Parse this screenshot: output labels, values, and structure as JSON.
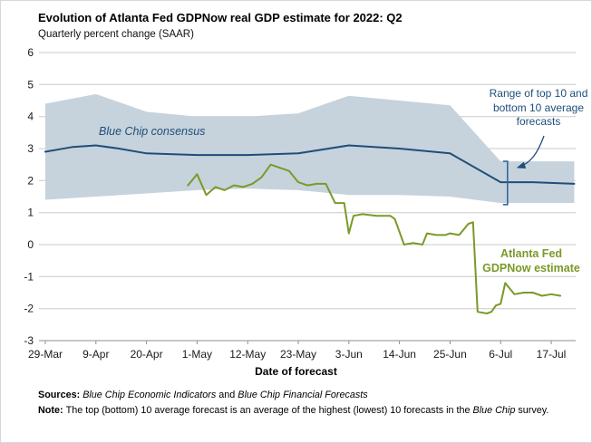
{
  "header": {
    "title": "Evolution of Atlanta Fed GDPNow real GDP estimate for 2022: Q2",
    "subtitle": "Quarterly percent change (SAAR)"
  },
  "annotations": {
    "blue_chip_label": "Blue Chip consensus",
    "range_label": "Range of top 10 and bottom 10 average forecasts",
    "gdpnow_label": "Atlanta Fed GDPNow estimate"
  },
  "footer": {
    "sources_segments": [
      {
        "text": "Sources: ",
        "style": "bold"
      },
      {
        "text": "Blue Chip Economic Indicators",
        "style": "italic"
      },
      {
        "text": " and ",
        "style": "normal"
      },
      {
        "text": "Blue Chip Financial Forecasts",
        "style": "italic"
      }
    ],
    "note_segments": [
      {
        "text": "Note: ",
        "style": "bold"
      },
      {
        "text": "The top (bottom) 10 average forecast is an average of the highest (lowest) 10 forecasts in the ",
        "style": "normal"
      },
      {
        "text": "Blue Chip",
        "style": "italic"
      },
      {
        "text": " survey.",
        "style": "normal"
      }
    ]
  },
  "chart_data": {
    "type": "line",
    "title": "Evolution of Atlanta Fed GDPNow real GDP estimate for 2022: Q2",
    "ylabel": "Quarterly percent change (SAAR)",
    "xlabel": "Date of forecast",
    "ylim": [
      -3,
      6
    ],
    "y_ticks": [
      6,
      5,
      4,
      3,
      2,
      1,
      0,
      -1,
      -2,
      -3
    ],
    "grid": "horizontal only",
    "x_axis_unit": "days since 29-Mar-2022",
    "x_ticks": [
      {
        "day": 0,
        "label": "29-Mar"
      },
      {
        "day": 11,
        "label": "9-Apr"
      },
      {
        "day": 22,
        "label": "20-Apr"
      },
      {
        "day": 33,
        "label": "1-May"
      },
      {
        "day": 44,
        "label": "12-May"
      },
      {
        "day": 55,
        "label": "23-May"
      },
      {
        "day": 66,
        "label": "3-Jun"
      },
      {
        "day": 77,
        "label": "14-Jun"
      },
      {
        "day": 88,
        "label": "25-Jun"
      },
      {
        "day": 99,
        "label": "6-Jul"
      },
      {
        "day": 110,
        "label": "17-Jul"
      }
    ],
    "band": {
      "name": "Range of top 10 and bottom 10 average forecasts",
      "color": "#c6d3dc",
      "top": [
        [
          0,
          4.4
        ],
        [
          11,
          4.7
        ],
        [
          22,
          4.15
        ],
        [
          33,
          4.0
        ],
        [
          44,
          4.0
        ],
        [
          55,
          4.1
        ],
        [
          66,
          4.65
        ],
        [
          77,
          4.5
        ],
        [
          88,
          4.35
        ],
        [
          99,
          2.6
        ],
        [
          115,
          2.6
        ]
      ],
      "bottom": [
        [
          0,
          1.4
        ],
        [
          11,
          1.5
        ],
        [
          22,
          1.6
        ],
        [
          33,
          1.7
        ],
        [
          44,
          1.75
        ],
        [
          55,
          1.7
        ],
        [
          66,
          1.55
        ],
        [
          77,
          1.55
        ],
        [
          88,
          1.5
        ],
        [
          99,
          1.3
        ],
        [
          115,
          1.3
        ]
      ]
    },
    "series": [
      {
        "name": "Blue Chip consensus",
        "color": "#1f4e79",
        "points": [
          [
            0,
            2.9
          ],
          [
            6,
            3.05
          ],
          [
            11,
            3.1
          ],
          [
            16,
            3.0
          ],
          [
            22,
            2.85
          ],
          [
            33,
            2.8
          ],
          [
            44,
            2.8
          ],
          [
            55,
            2.85
          ],
          [
            66,
            3.1
          ],
          [
            77,
            3.0
          ],
          [
            88,
            2.85
          ],
          [
            99,
            1.95
          ],
          [
            106,
            1.95
          ],
          [
            115,
            1.9
          ]
        ]
      },
      {
        "name": "Atlanta Fed GDPNow estimate",
        "color": "#7a9a28",
        "points": [
          [
            31,
            1.85
          ],
          [
            33,
            2.2
          ],
          [
            35,
            1.55
          ],
          [
            37,
            1.8
          ],
          [
            39,
            1.7
          ],
          [
            41,
            1.85
          ],
          [
            43,
            1.8
          ],
          [
            45,
            1.9
          ],
          [
            47,
            2.1
          ],
          [
            49,
            2.5
          ],
          [
            51,
            2.4
          ],
          [
            53,
            2.3
          ],
          [
            55,
            1.95
          ],
          [
            57,
            1.85
          ],
          [
            59,
            1.9
          ],
          [
            61,
            1.9
          ],
          [
            63,
            1.3
          ],
          [
            65,
            1.3
          ],
          [
            66,
            0.35
          ],
          [
            67,
            0.9
          ],
          [
            69,
            0.95
          ],
          [
            72,
            0.9
          ],
          [
            75,
            0.9
          ],
          [
            76,
            0.8
          ],
          [
            78,
            0.0
          ],
          [
            80,
            0.05
          ],
          [
            82,
            0.0
          ],
          [
            83,
            0.35
          ],
          [
            85,
            0.3
          ],
          [
            87,
            0.3
          ],
          [
            88,
            0.35
          ],
          [
            90,
            0.3
          ],
          [
            92,
            0.65
          ],
          [
            93,
            0.7
          ],
          [
            94,
            -2.1
          ],
          [
            96,
            -2.15
          ],
          [
            97,
            -2.1
          ],
          [
            98,
            -1.9
          ],
          [
            99,
            -1.85
          ],
          [
            100,
            -1.2
          ],
          [
            102,
            -1.55
          ],
          [
            104,
            -1.5
          ],
          [
            106,
            -1.5
          ],
          [
            108,
            -1.6
          ],
          [
            110,
            -1.55
          ],
          [
            112,
            -1.6
          ]
        ]
      }
    ],
    "bracket": {
      "day": 100.5,
      "from": 2.6,
      "to": 1.25,
      "color": "#34689a"
    }
  },
  "colors": {
    "navy": "#1f4e79",
    "green": "#7a9a28",
    "band": "#c6d3dc",
    "grid": "#c9c9c9",
    "axis": "#8f8f8f"
  }
}
